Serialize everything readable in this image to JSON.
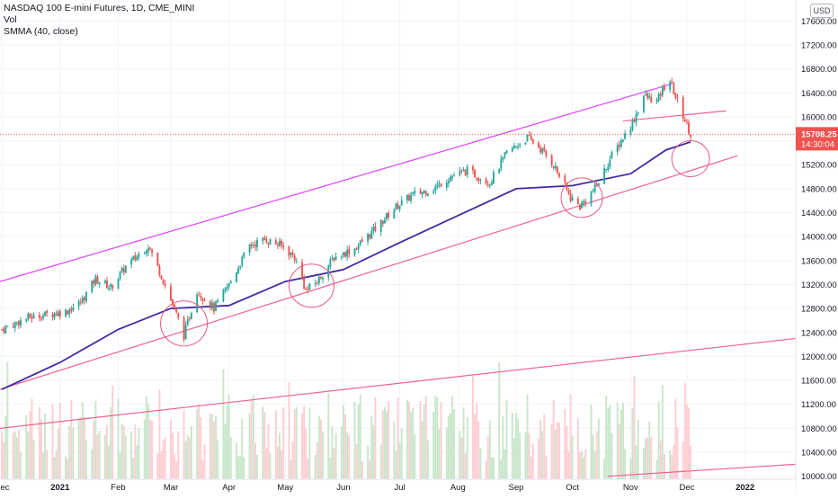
{
  "chart_data": {
    "type": "candlestick",
    "title": "NASDAQ 100 E-mini Futures, 1D, CME_MINI",
    "legend": [
      "Vol",
      "SMMA (40, close)"
    ],
    "currency": "USD",
    "last_price": "15708.25",
    "countdown": "14:30:04",
    "y_ticks": [
      10000,
      10400,
      10800,
      11200,
      11600,
      12000,
      12400,
      12800,
      13200,
      13600,
      14000,
      14400,
      14800,
      15200,
      15600,
      16000,
      16400,
      16800,
      17200,
      17600
    ],
    "y_tick_labels": [
      "10000.00",
      "10400.00",
      "10800.00",
      "11200.00",
      "11600.00",
      "12000.00",
      "12400.00",
      "12800.00",
      "13200.00",
      "13600.00",
      "14000.00",
      "14400.00",
      "14800.00",
      "15200.00",
      "15600.00",
      "16000.00",
      "16400.00",
      "16800.00",
      "17200.00",
      "17600.00"
    ],
    "ylim": [
      9950,
      17950
    ],
    "x_labels": [
      "Dec",
      "2021",
      "Feb",
      "Mar",
      "Apr",
      "May",
      "Jun",
      "Jul",
      "Aug",
      "Sep",
      "Oct",
      "Nov",
      "Dec",
      "2022"
    ],
    "x_label_dates": [
      "2020-12-01",
      "2021-01-01",
      "2021-02-01",
      "2021-03-01",
      "2021-04-01",
      "2021-05-01",
      "2021-06-01",
      "2021-07-01",
      "2021-08-01",
      "2021-09-01",
      "2021-10-01",
      "2021-11-01",
      "2021-12-01",
      "2022-01-01"
    ],
    "xlim": [
      "2020-11-30",
      "2022-01-28"
    ],
    "price_path": [
      [
        "2020-12-01",
        12450
      ],
      [
        "2020-12-15",
        12650
      ],
      [
        "2021-01-04",
        12750
      ],
      [
        "2021-01-12",
        12900
      ],
      [
        "2021-01-20",
        13300
      ],
      [
        "2021-01-28",
        13150
      ],
      [
        "2021-02-05",
        13500
      ],
      [
        "2021-02-12",
        13700
      ],
      [
        "2021-02-17",
        13850
      ],
      [
        "2021-02-24",
        13350
      ],
      [
        "2021-03-04",
        12700
      ],
      [
        "2021-03-08",
        12350
      ],
      [
        "2021-03-15",
        13100
      ],
      [
        "2021-03-24",
        12800
      ],
      [
        "2021-04-01",
        13200
      ],
      [
        "2021-04-12",
        13850
      ],
      [
        "2021-04-20",
        13950
      ],
      [
        "2021-04-29",
        13850
      ],
      [
        "2021-05-06",
        13650
      ],
      [
        "2021-05-12",
        13100
      ],
      [
        "2021-05-18",
        13250
      ],
      [
        "2021-05-27",
        13650
      ],
      [
        "2021-06-07",
        13800
      ],
      [
        "2021-06-17",
        14100
      ],
      [
        "2021-06-29",
        14500
      ],
      [
        "2021-07-08",
        14700
      ],
      [
        "2021-07-19",
        14800
      ],
      [
        "2021-07-28",
        15000
      ],
      [
        "2021-08-06",
        15100
      ],
      [
        "2021-08-18",
        14900
      ],
      [
        "2021-08-27",
        15400
      ],
      [
        "2021-09-07",
        15650
      ],
      [
        "2021-09-13",
        15500
      ],
      [
        "2021-09-21",
        15200
      ],
      [
        "2021-09-30",
        14650
      ],
      [
        "2021-10-05",
        14500
      ],
      [
        "2021-10-14",
        14850
      ],
      [
        "2021-10-22",
        15350
      ],
      [
        "2021-11-02",
        15900
      ],
      [
        "2021-11-08",
        16350
      ],
      [
        "2021-11-15",
        16250
      ],
      [
        "2021-11-19",
        16500
      ],
      [
        "2021-11-22",
        16600
      ],
      [
        "2021-11-26",
        16250
      ],
      [
        "2021-11-30",
        15950
      ],
      [
        "2021-12-03",
        15708
      ]
    ],
    "smma_path": [
      [
        "2020-12-01",
        11450
      ],
      [
        "2021-01-01",
        11900
      ],
      [
        "2021-02-01",
        12450
      ],
      [
        "2021-03-01",
        12800
      ],
      [
        "2021-04-01",
        12850
      ],
      [
        "2021-05-01",
        13250
      ],
      [
        "2021-06-01",
        13450
      ],
      [
        "2021-07-01",
        13900
      ],
      [
        "2021-08-01",
        14350
      ],
      [
        "2021-09-01",
        14800
      ],
      [
        "2021-10-01",
        14850
      ],
      [
        "2021-11-01",
        15050
      ],
      [
        "2021-11-20",
        15450
      ],
      [
        "2021-12-03",
        15580
      ]
    ],
    "trendlines": [
      {
        "color": "#e040fb",
        "points": [
          [
            "2020-11-30",
            13250
          ],
          [
            "2021-11-23",
            16550
          ]
        ]
      },
      {
        "color": "#f06292",
        "points": [
          [
            "2021-10-28",
            15930
          ],
          [
            "2021-12-22",
            16100
          ]
        ]
      },
      {
        "color": "#f06292",
        "points": [
          [
            "2020-11-30",
            11450
          ],
          [
            "2021-12-28",
            15350
          ]
        ]
      },
      {
        "color": "#f06292",
        "points": [
          [
            "2020-11-30",
            10800
          ],
          [
            "2022-01-28",
            12300
          ]
        ]
      },
      {
        "color": "#f06292",
        "points": [
          [
            "2021-10-20",
            10000
          ],
          [
            "2022-01-28",
            10200
          ]
        ]
      }
    ],
    "circles": [
      {
        "date": "2021-03-08",
        "price": 12550,
        "rx": 26,
        "ry": 25
      },
      {
        "date": "2021-05-15",
        "price": 13180,
        "rx": 25,
        "ry": 24
      },
      {
        "date": "2021-10-06",
        "price": 14650,
        "rx": 23,
        "ry": 22
      },
      {
        "date": "2021-12-03",
        "price": 15300,
        "rx": 21,
        "ry": 20
      }
    ],
    "colors": {
      "up": "#26a69a",
      "down": "#ef5350",
      "smma": "#3f2aa6",
      "vol_up": "#c8e6c9",
      "vol_down": "#ffcdd2",
      "price_tag": "#ef5350"
    }
  }
}
